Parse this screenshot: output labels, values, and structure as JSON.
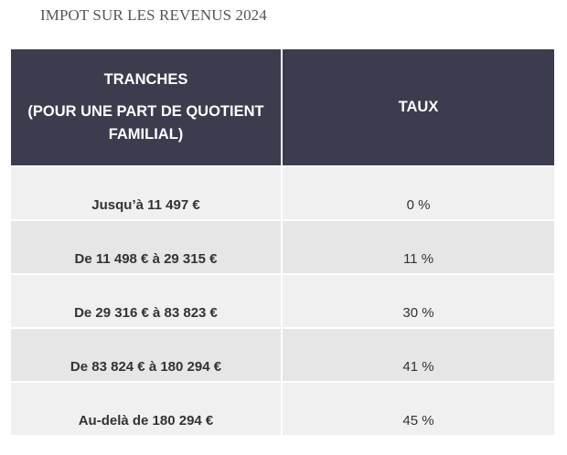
{
  "title": "IMPOT SUR LES REVENUS 2024",
  "table": {
    "headers": {
      "tranches_line1": "TRANCHES",
      "tranches_line2": "(POUR UNE PART DE QUOTIENT FAMILIAL)",
      "taux": "TAUX"
    },
    "rows": [
      {
        "tranche": "Jusqu’à 11 497 €",
        "taux": "0 %"
      },
      {
        "tranche": "De 11 498 € à 29 315 €",
        "taux": "11 %"
      },
      {
        "tranche": "De 29 316 € à 83 823 €",
        "taux": "30 %"
      },
      {
        "tranche": "De 83 824 € à 180 294 €",
        "taux": "41 %"
      },
      {
        "tranche": "Au-delà de 180 294 €",
        "taux": "45 %"
      }
    ]
  },
  "colors": {
    "header_background": "#3b3c4e",
    "row_light": "#f0f0f0",
    "row_dark": "#e6e6e6"
  }
}
